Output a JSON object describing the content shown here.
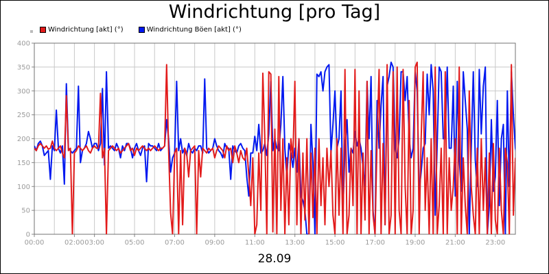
{
  "chart_data": {
    "type": "line",
    "title": "Windrichtung [pro Tag]",
    "xlabel": "28.09",
    "ylabel": "",
    "x_tick_labels": [
      "00:00",
      "02:00",
      "03:00",
      "05:00",
      "07:00",
      "09:00",
      "11:00",
      "13:00",
      "15:00",
      "17:00",
      "19:00",
      "21:00",
      "23:00"
    ],
    "x_tick_hours": [
      0,
      2,
      3,
      5,
      7,
      9,
      11,
      13,
      15,
      17,
      19,
      21,
      23
    ],
    "xlim": [
      0,
      24
    ],
    "y_ticks": [
      "0",
      "50",
      "100",
      "150",
      "200",
      "250",
      "300",
      "350",
      "400"
    ],
    "ylim": [
      0,
      400
    ],
    "grid": true,
    "legend_position": "top-left",
    "series": [
      {
        "name": "Windrichtung [akt] (°)",
        "color": "#e21b1b",
        "x_step_hours": 0.1,
        "values": [
          180,
          175,
          185,
          190,
          185,
          180,
          185,
          178,
          180,
          195,
          180,
          175,
          180,
          185,
          170,
          160,
          290,
          175,
          180,
          0,
          170,
          175,
          185,
          180,
          175,
          180,
          185,
          175,
          170,
          180,
          185,
          180,
          180,
          295,
          160,
          180,
          0,
          175,
          180,
          185,
          180,
          175,
          180,
          170,
          175,
          180,
          185,
          190,
          175,
          180,
          165,
          180,
          175,
          180,
          185,
          180,
          175,
          180,
          175,
          180,
          185,
          180,
          175,
          180,
          180,
          185,
          355,
          175,
          45,
          0,
          170,
          180,
          0,
          175,
          20,
          180,
          170,
          120,
          175,
          180,
          185,
          0,
          175,
          120,
          180,
          175,
          170,
          180,
          175,
          180,
          160,
          175,
          185,
          180,
          175,
          160,
          185,
          175,
          180,
          150,
          185,
          170,
          150,
          175,
          160,
          155,
          180,
          125,
          60,
          160,
          0,
          20,
          170,
          50,
          337,
          200,
          0,
          340,
          335,
          5,
          220,
          0,
          330,
          50,
          200,
          0,
          160,
          20,
          200,
          160,
          320,
          20,
          200,
          0,
          170,
          30,
          200,
          0,
          170,
          35,
          180,
          0,
          200,
          60,
          160,
          20,
          180,
          100,
          175,
          40,
          0,
          200,
          40,
          180,
          0,
          345,
          0,
          40,
          180,
          60,
          345,
          0,
          300,
          0,
          170,
          30,
          320,
          0,
          175,
          40,
          0,
          200,
          345,
          0,
          190,
          20,
          355,
          0,
          40,
          340,
          0,
          350,
          50,
          0,
          345,
          100,
          0,
          280,
          0,
          50,
          350,
          360,
          0,
          200,
          340,
          50,
          160,
          0,
          200,
          0,
          350,
          0,
          60,
          180,
          0,
          340,
          0,
          160,
          50,
          100,
          200,
          0,
          350,
          0,
          160,
          60,
          0,
          300,
          100,
          40,
          0,
          180,
          0,
          200,
          50,
          160,
          0,
          170,
          0,
          190,
          30,
          0,
          180,
          50,
          0,
          180,
          150,
          0,
          355,
          40,
          160
        ]
      },
      {
        "name": "Windrichtung Böen [akt] (°)",
        "color": "#0018f0",
        "x_step_hours": 0.1,
        "values": [
          185,
          175,
          190,
          195,
          185,
          165,
          170,
          175,
          115,
          185,
          175,
          260,
          180,
          170,
          185,
          105,
          315,
          180,
          175,
          170,
          175,
          180,
          310,
          150,
          175,
          180,
          190,
          215,
          200,
          180,
          190,
          190,
          175,
          190,
          305,
          145,
          340,
          180,
          185,
          180,
          175,
          190,
          180,
          160,
          185,
          175,
          190,
          190,
          180,
          160,
          180,
          190,
          175,
          165,
          180,
          185,
          110,
          190,
          185,
          185,
          180,
          175,
          190,
          175,
          180,
          185,
          240,
          200,
          130,
          160,
          170,
          320,
          175,
          200,
          170,
          180,
          165,
          190,
          175,
          170,
          180,
          175,
          185,
          185,
          170,
          325,
          180,
          170,
          175,
          180,
          200,
          185,
          175,
          170,
          160,
          190,
          180,
          180,
          115,
          185,
          175,
          170,
          185,
          190,
          180,
          175,
          120,
          80,
          170,
          170,
          205,
          175,
          230,
          170,
          175,
          190,
          165,
          210,
          320,
          175,
          200,
          180,
          175,
          230,
          330,
          180,
          120,
          190,
          170,
          140,
          180,
          130,
          200,
          80,
          70,
          50,
          0,
          0,
          230,
          150,
          0,
          335,
          330,
          340,
          300,
          340,
          350,
          355,
          170,
          230,
          300,
          180,
          200,
          300,
          50,
          180,
          240,
          130,
          180,
          170,
          215,
          185,
          200,
          180,
          140,
          100,
          320,
          200,
          330,
          50,
          0,
          280,
          180,
          270,
          330,
          20,
          310,
          330,
          360,
          350,
          180,
          160,
          200,
          340,
          340,
          280,
          330,
          200,
          160,
          180,
          340,
          300,
          90,
          130,
          180,
          190,
          335,
          250,
          355,
          300,
          40,
          190,
          350,
          340,
          200,
          200,
          350,
          180,
          180,
          310,
          80,
          320,
          160,
          90,
          340,
          280,
          220,
          0,
          180,
          340,
          155,
          100,
          345,
          210,
          310,
          350,
          0,
          60,
          240,
          90,
          120,
          280,
          60,
          200,
          230,
          0,
          300,
          100,
          340,
          250,
          180,
          160
        ]
      }
    ]
  },
  "legend": {
    "entries": [
      "Windrichtung [akt] (°)",
      "Windrichtung Böen [akt] (°)"
    ],
    "colors": [
      "#e21b1b",
      "#0018f0"
    ]
  }
}
